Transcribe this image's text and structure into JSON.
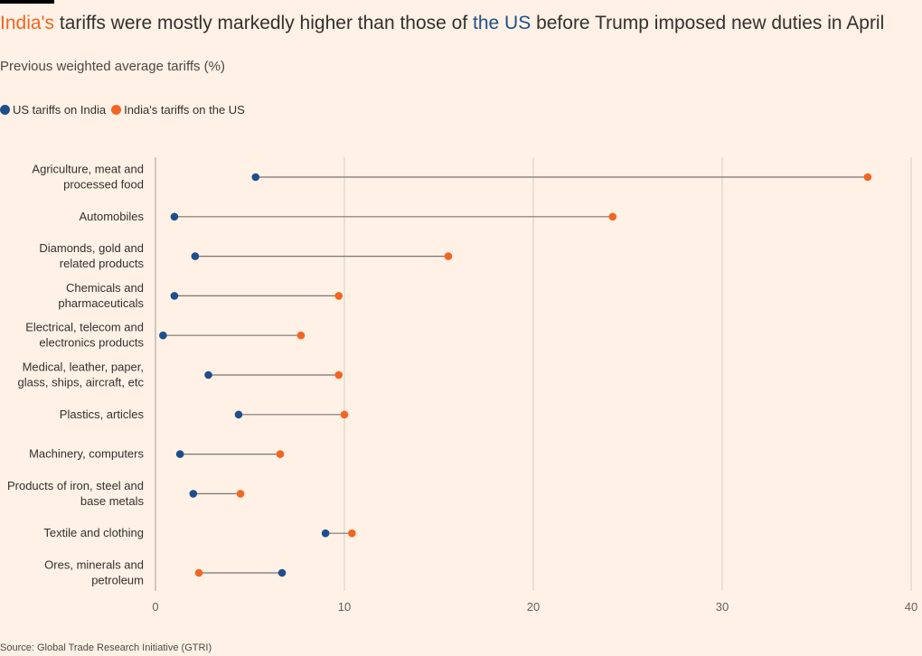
{
  "title": {
    "part1": "India's",
    "part2": " tariffs were mostly markedly higher than those of ",
    "part3": "the US",
    "part4": " before Trump imposed new duties in April"
  },
  "subtitle": "Previous weighted average tariffs (%)",
  "source": "Source: Global Trade Research Initiative (GTRI)",
  "colors": {
    "us": "#1f4e8c",
    "india": "#f26522",
    "connector": "#7a7470",
    "grid": "#d9cdc3",
    "background": "#fff1e5"
  },
  "chart_data": {
    "type": "dumbbell",
    "xlim": [
      0,
      40
    ],
    "xticks": [
      0,
      10,
      20,
      30,
      40
    ],
    "grid": true,
    "legend_position": "top-left",
    "categories": [
      [
        "Agriculture, meat and",
        "processed food"
      ],
      [
        "Automobiles"
      ],
      [
        "Diamonds, gold and",
        "related products"
      ],
      [
        "Chemicals and",
        "pharmaceuticals"
      ],
      [
        "Electrical, telecom and",
        "electronics products"
      ],
      [
        "Medical, leather, paper,",
        "glass, ships, aircraft, etc"
      ],
      [
        "Plastics, articles"
      ],
      [
        "Machinery, computers"
      ],
      [
        "Products of iron, steel and",
        "base metals"
      ],
      [
        "Textile and clothing"
      ],
      [
        "Ores, minerals and",
        "petroleum"
      ]
    ],
    "series": [
      {
        "name": "US tariffs on India",
        "color": "#1f4e8c",
        "values": [
          5.3,
          1.0,
          2.1,
          1.0,
          0.4,
          2.8,
          4.4,
          1.3,
          2.0,
          9.0,
          6.7
        ]
      },
      {
        "name": "India's tariffs on the US",
        "color": "#f26522",
        "values": [
          37.7,
          24.2,
          15.5,
          9.7,
          7.7,
          9.7,
          10.0,
          6.6,
          4.5,
          10.4,
          2.3
        ]
      }
    ]
  }
}
